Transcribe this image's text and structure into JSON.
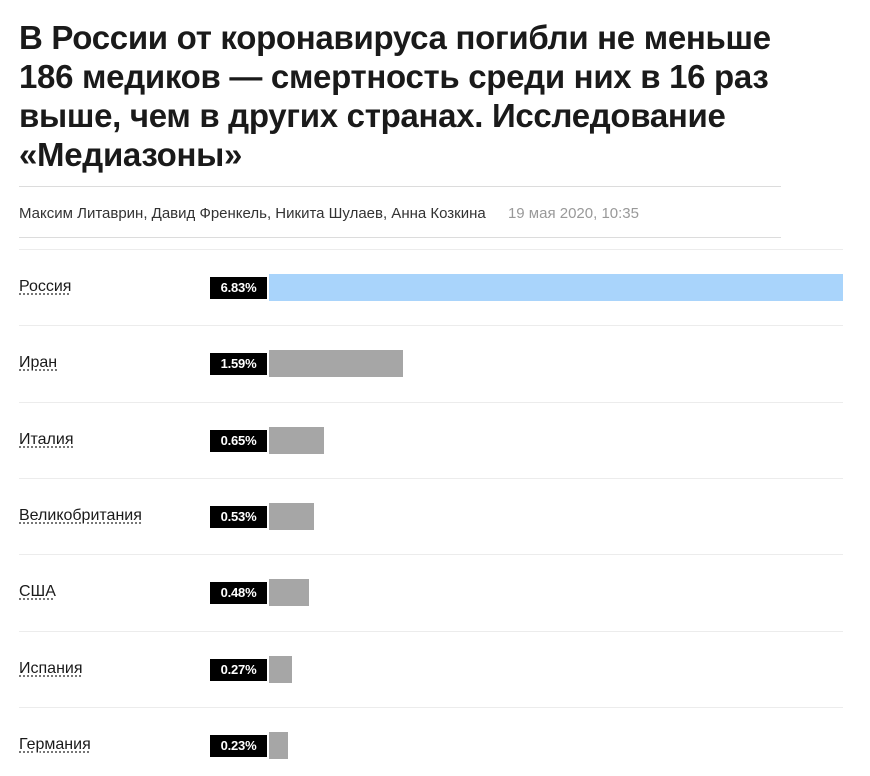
{
  "article": {
    "title": "В России от коронавируса погибли не меньше 186 медиков — смертность среди них в 16 раз выше, чем в других странах. Исследование «Медиазоны»",
    "authors": "Максим Литаврин, Давид Френкель, Никита Шулаев, Анна Козкина",
    "date": "19 мая 2020, 10:35"
  },
  "colors": {
    "highlight_bar": "#a9d4fb",
    "default_bar": "#a6a6a6",
    "value_label_bg": "#000000"
  },
  "chart_data": {
    "type": "bar",
    "orientation": "horizontal",
    "title": "",
    "xlabel": "",
    "ylabel": "",
    "xlim": [
      0,
      6.83
    ],
    "grid": false,
    "highlight_category": "Россия",
    "categories": [
      "Россия",
      "Иран",
      "Италия",
      "Великобритания",
      "США",
      "Испания",
      "Германия"
    ],
    "values": [
      6.83,
      1.59,
      0.65,
      0.53,
      0.48,
      0.27,
      0.23
    ],
    "value_labels": [
      "6.83%",
      "1.59%",
      "0.65%",
      "0.53%",
      "0.48%",
      "0.27%",
      "0.23%"
    ]
  }
}
